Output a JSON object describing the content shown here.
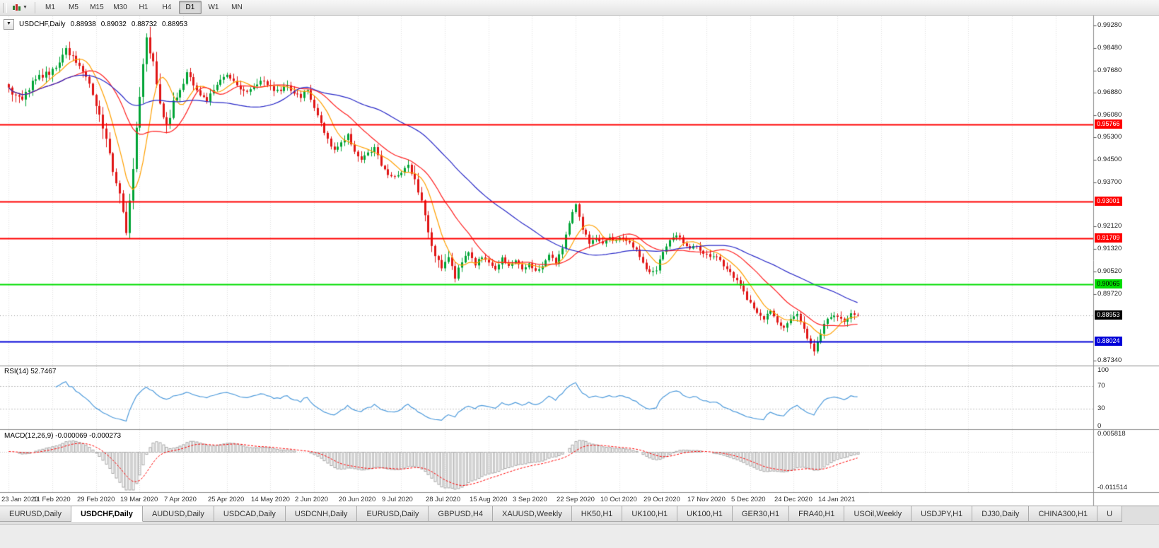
{
  "toolbar": {
    "timeframes": [
      "M1",
      "M5",
      "M15",
      "M30",
      "H1",
      "H4",
      "D1",
      "W1",
      "MN"
    ],
    "active_timeframe": "D1"
  },
  "chart_data": {
    "type": "candlestick",
    "title_overlay": {
      "symbol": "USDCHF,Daily",
      "open": "0.88938",
      "high": "0.89032",
      "low": "0.88732",
      "close": "0.88953"
    },
    "y_axis": {
      "min": 0.8734,
      "max": 0.9928,
      "ticks": [
        "0.99280",
        "0.98480",
        "0.97680",
        "0.96880",
        "0.96080",
        "0.95300",
        "0.94500",
        "0.93700",
        "0.92120",
        "0.91320",
        "0.90520",
        "0.89720",
        "0.87340"
      ]
    },
    "x_axis": {
      "bars_per_label": 13,
      "labels": [
        "23 Jan 2020",
        "11 Feb 2020",
        "29 Feb 2020",
        "19 Mar 2020",
        "7 Apr 2020",
        "25 Apr 2020",
        "14 May 2020",
        "2 Jun 2020",
        "20 Jun 2020",
        "9 Jul 2020",
        "28 Jul 2020",
        "15 Aug 2020",
        "3 Sep 2020",
        "22 Sep 2020",
        "10 Oct 2020",
        "29 Oct 2020",
        "17 Nov 2020",
        "5 Dec 2020",
        "24 Dec 2020",
        "14 Jan 2021"
      ]
    },
    "bars_total": 254,
    "price_anchors": [
      [
        0,
        0.97
      ],
      [
        2,
        0.9672
      ],
      [
        4,
        0.966
      ],
      [
        7,
        0.9725
      ],
      [
        10,
        0.9752
      ],
      [
        13,
        0.9765
      ],
      [
        15,
        0.98
      ],
      [
        17,
        0.9838
      ],
      [
        19,
        0.9815
      ],
      [
        21,
        0.979
      ],
      [
        23,
        0.9745
      ],
      [
        25,
        0.969
      ],
      [
        26,
        0.9645
      ],
      [
        28,
        0.9575
      ],
      [
        30,
        0.947
      ],
      [
        32,
        0.937
      ],
      [
        34,
        0.9265
      ],
      [
        35,
        0.92
      ],
      [
        36,
        0.929
      ],
      [
        37,
        0.942
      ],
      [
        38,
        0.956
      ],
      [
        39,
        0.968
      ],
      [
        40,
        0.98
      ],
      [
        41,
        0.9875
      ],
      [
        42,
        0.984
      ],
      [
        43,
        0.979
      ],
      [
        44,
        0.972
      ],
      [
        45,
        0.9665
      ],
      [
        46,
        0.961
      ],
      [
        47,
        0.957
      ],
      [
        48,
        0.961
      ],
      [
        49,
        0.9645
      ],
      [
        51,
        0.97
      ],
      [
        53,
        0.9755
      ],
      [
        55,
        0.972
      ],
      [
        57,
        0.968
      ],
      [
        59,
        0.966
      ],
      [
        61,
        0.97
      ],
      [
        63,
        0.973
      ],
      [
        65,
        0.9745
      ],
      [
        67,
        0.973
      ],
      [
        69,
        0.9705
      ],
      [
        71,
        0.969
      ],
      [
        73,
        0.9715
      ],
      [
        75,
        0.973
      ],
      [
        77,
        0.9718
      ],
      [
        79,
        0.9702
      ],
      [
        81,
        0.9695
      ],
      [
        83,
        0.9712
      ],
      [
        85,
        0.969
      ],
      [
        87,
        0.9675
      ],
      [
        89,
        0.97
      ],
      [
        91,
        0.964
      ],
      [
        93,
        0.9575
      ],
      [
        95,
        0.9525
      ],
      [
        97,
        0.948
      ],
      [
        99,
        0.9515
      ],
      [
        101,
        0.954
      ],
      [
        103,
        0.948
      ],
      [
        105,
        0.9455
      ],
      [
        107,
        0.9475
      ],
      [
        109,
        0.949
      ],
      [
        111,
        0.943
      ],
      [
        113,
        0.94
      ],
      [
        115,
        0.939
      ],
      [
        117,
        0.9405
      ],
      [
        119,
        0.943
      ],
      [
        121,
        0.9375
      ],
      [
        123,
        0.93
      ],
      [
        125,
        0.919
      ],
      [
        127,
        0.911
      ],
      [
        129,
        0.906
      ],
      [
        131,
        0.9105
      ],
      [
        133,
        0.903
      ],
      [
        135,
        0.909
      ],
      [
        137,
        0.9115
      ],
      [
        139,
        0.9075
      ],
      [
        141,
        0.9105
      ],
      [
        143,
        0.9085
      ],
      [
        145,
        0.9055
      ],
      [
        147,
        0.91
      ],
      [
        149,
        0.9075
      ],
      [
        151,
        0.909
      ],
      [
        153,
        0.9065
      ],
      [
        155,
        0.908
      ],
      [
        157,
        0.9055
      ],
      [
        159,
        0.9075
      ],
      [
        161,
        0.9105
      ],
      [
        163,
        0.9085
      ],
      [
        165,
        0.914
      ],
      [
        167,
        0.922
      ],
      [
        169,
        0.9295
      ],
      [
        171,
        0.92
      ],
      [
        173,
        0.9155
      ],
      [
        175,
        0.9165
      ],
      [
        177,
        0.915
      ],
      [
        179,
        0.917
      ],
      [
        181,
        0.916
      ],
      [
        183,
        0.9175
      ],
      [
        185,
        0.9155
      ],
      [
        187,
        0.9125
      ],
      [
        189,
        0.908
      ],
      [
        191,
        0.9045
      ],
      [
        193,
        0.906
      ],
      [
        195,
        0.9125
      ],
      [
        197,
        0.9165
      ],
      [
        199,
        0.9185
      ],
      [
        201,
        0.915
      ],
      [
        203,
        0.913
      ],
      [
        205,
        0.9145
      ],
      [
        207,
        0.9115
      ],
      [
        209,
        0.9105
      ],
      [
        211,
        0.9098
      ],
      [
        213,
        0.9075
      ],
      [
        215,
        0.9045
      ],
      [
        217,
        0.9015
      ],
      [
        219,
        0.8975
      ],
      [
        221,
        0.8935
      ],
      [
        223,
        0.8905
      ],
      [
        225,
        0.888
      ],
      [
        227,
        0.8912
      ],
      [
        229,
        0.8868
      ],
      [
        231,
        0.8852
      ],
      [
        233,
        0.8882
      ],
      [
        235,
        0.8895
      ],
      [
        237,
        0.8848
      ],
      [
        239,
        0.8788
      ],
      [
        240,
        0.8762
      ],
      [
        241,
        0.88
      ],
      [
        243,
        0.8862
      ],
      [
        245,
        0.8896
      ],
      [
        247,
        0.8896
      ],
      [
        249,
        0.8878
      ],
      [
        251,
        0.8902
      ],
      [
        253,
        0.88953
      ]
    ],
    "volatility_segments": [
      [
        26,
        0.0028
      ],
      [
        50,
        0.0045
      ],
      [
        120,
        0.0022
      ],
      [
        132,
        0.0035
      ],
      [
        235,
        0.0018
      ],
      [
        254,
        0.0022
      ]
    ],
    "candle_colors": {
      "up": "#00A435",
      "down": "#E01515"
    },
    "moving_averages": [
      {
        "period": 8,
        "color": "#FFA000"
      },
      {
        "period": 20,
        "color": "#FF2020"
      },
      {
        "period": 50,
        "color": "#2929C8"
      }
    ],
    "h_lines": [
      {
        "value": 0.95766,
        "label": "0.95766",
        "color": "#FF0000",
        "text_color": "#FFFFFF"
      },
      {
        "value": 0.93001,
        "label": "0.93001",
        "color": "#FF0000",
        "text_color": "#FFFFFF"
      },
      {
        "value": 0.91709,
        "label": "0.91709",
        "color": "#FF0000",
        "text_color": "#FFFFFF"
      },
      {
        "value": 0.90065,
        "label": "0.90065",
        "color": "#00DD00",
        "text_color": "#000000"
      },
      {
        "value": 0.88024,
        "label": "0.88024",
        "color": "#0000D8",
        "text_color": "#FFFFFF"
      }
    ],
    "current_price": {
      "value": 0.88953,
      "label": "0.88953",
      "bg": "#000000",
      "text_color": "#FFFFFF"
    },
    "indicators": {
      "rsi": {
        "title": "RSI(14) 52.7467",
        "period": 14,
        "line_color": "#4E9BDC",
        "axis_ticks": [
          "100",
          "70",
          "30",
          "0"
        ],
        "level_lines": [
          70,
          30
        ],
        "range": [
          0,
          100
        ]
      },
      "macd": {
        "title": "MACD(12,26,9) -0.000069 -0.000273",
        "fast": 12,
        "slow": 26,
        "signal": 9,
        "hist_color": "#A6A6A6",
        "signal_color": "#FF0000",
        "axis_ticks": [
          "0.005818",
          "-0.011514"
        ],
        "range": [
          -0.011514,
          0.005818
        ]
      }
    }
  },
  "tabs": {
    "items": [
      "EURUSD,Daily",
      "USDCHF,Daily",
      "AUDUSD,Daily",
      "USDCAD,Daily",
      "USDCNH,Daily",
      "EURUSD,Daily",
      "GBPUSD,H4",
      "XAUUSD,Weekly",
      "HK50,H1",
      "UK100,H1",
      "UK100,H1",
      "GER30,H1",
      "FRA40,H1",
      "USOil,Weekly",
      "USDJPY,H1",
      "DJ30,Daily",
      "CHINA300,H1",
      "U"
    ],
    "active_index": 1
  }
}
